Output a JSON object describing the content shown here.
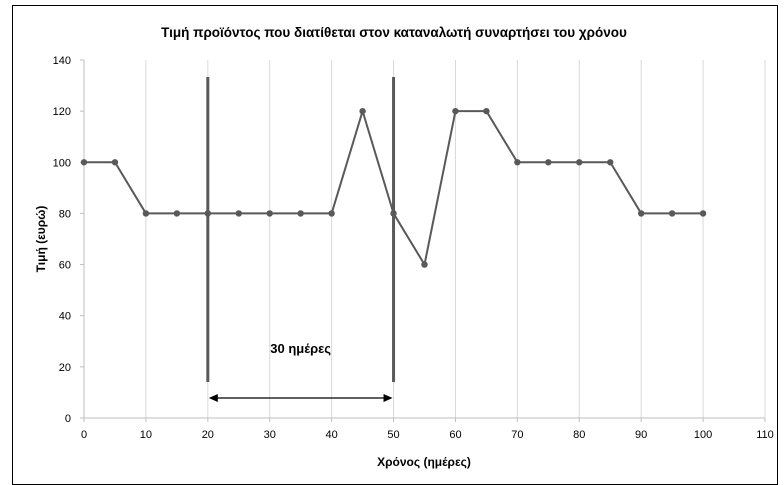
{
  "chart_data": {
    "type": "line",
    "title": "Τιμή προϊόντος που διατίθεται στον καταναλωτή συναρτήσει του χρόνου",
    "xlabel": "Χρόνος (ημέρες)",
    "ylabel": "Τιμή (ευρώ)",
    "xlim": [
      0,
      110
    ],
    "ylim": [
      0,
      140
    ],
    "x_ticks": [
      0,
      10,
      20,
      30,
      40,
      50,
      60,
      70,
      80,
      90,
      100,
      110
    ],
    "y_ticks": [
      0,
      20,
      40,
      60,
      80,
      100,
      120,
      140
    ],
    "grid": "vertical",
    "series": [
      {
        "x": [
          0,
          5,
          10,
          15,
          20,
          25,
          30,
          35,
          40,
          45,
          50,
          55,
          60,
          65,
          70,
          75,
          80,
          85,
          90,
          95,
          100
        ],
        "y": [
          100,
          100,
          80,
          80,
          80,
          80,
          80,
          80,
          80,
          120,
          80,
          60,
          120,
          120,
          100,
          100,
          100,
          100,
          80,
          80,
          80
        ]
      }
    ],
    "annotations": {
      "period_label": "30 ημέρες",
      "period_start": 20,
      "period_end": 50,
      "line_color": "#595959"
    }
  }
}
